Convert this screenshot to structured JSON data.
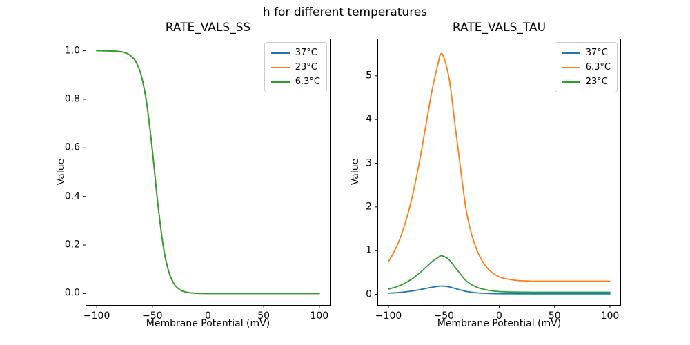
{
  "figure": {
    "suptitle": "h for different temperatures",
    "palette": {
      "blue": "#1f77b4",
      "orange": "#ff7f0e",
      "green": "#2ca02c"
    }
  },
  "chart_data": [
    {
      "type": "line",
      "title": "RATE_VALS_SS",
      "xlabel": "Membrane Potential (mV)",
      "ylabel": "Value",
      "xlim": [
        -110,
        110
      ],
      "ylim": [
        -0.05,
        1.05
      ],
      "grid": false,
      "legend_position": "upper right",
      "legend_entries": [
        "37°C",
        "23°C",
        "6.3°C"
      ],
      "overlap_note": "all three temperature curves coincide exactly; green (6.3°C) is drawn on top",
      "xticks": [
        {
          "v": -100,
          "label": "−100"
        },
        {
          "v": -50,
          "label": "−50"
        },
        {
          "v": 0,
          "label": "0"
        },
        {
          "v": 50,
          "label": "50"
        },
        {
          "v": 100,
          "label": "100"
        }
      ],
      "yticks": [
        {
          "v": 0.0,
          "label": "0.0"
        },
        {
          "v": 0.2,
          "label": "0.2"
        },
        {
          "v": 0.4,
          "label": "0.4"
        },
        {
          "v": 0.6,
          "label": "0.6"
        },
        {
          "v": 0.8,
          "label": "0.8"
        },
        {
          "v": 1.0,
          "label": "1.0"
        }
      ],
      "x": [
        -100,
        -95,
        -90,
        -85,
        -80,
        -75,
        -70,
        -65,
        -60,
        -55,
        -50,
        -45,
        -40,
        -35,
        -30,
        -25,
        -20,
        -15,
        -10,
        -5,
        0,
        5,
        10,
        15,
        20,
        25,
        30,
        35,
        40,
        45,
        50,
        55,
        60,
        65,
        70,
        75,
        80,
        85,
        90,
        95,
        100
      ],
      "series": [
        {
          "name": "37°C",
          "color": "#1f77b4",
          "values": [
            1.0,
            0.9998,
            0.9995,
            0.9988,
            0.997,
            0.9927,
            0.9819,
            0.9565,
            0.8986,
            0.7812,
            0.5899,
            0.3669,
            0.1893,
            0.086,
            0.0365,
            0.015,
            0.0061,
            0.0025,
            0.001,
            0.0004,
            0.0002,
            0.0001,
            0.0,
            0.0,
            0.0,
            0.0,
            0.0,
            0.0,
            0.0,
            0.0,
            0.0,
            0.0,
            0.0,
            0.0,
            0.0,
            0.0,
            0.0,
            0.0,
            0.0,
            0.0,
            0.0
          ]
        },
        {
          "name": "23°C",
          "color": "#ff7f0e",
          "values": [
            1.0,
            0.9998,
            0.9995,
            0.9988,
            0.997,
            0.9927,
            0.9819,
            0.9565,
            0.8986,
            0.7812,
            0.5899,
            0.3669,
            0.1893,
            0.086,
            0.0365,
            0.015,
            0.0061,
            0.0025,
            0.001,
            0.0004,
            0.0002,
            0.0001,
            0.0,
            0.0,
            0.0,
            0.0,
            0.0,
            0.0,
            0.0,
            0.0,
            0.0,
            0.0,
            0.0,
            0.0,
            0.0,
            0.0,
            0.0,
            0.0,
            0.0,
            0.0,
            0.0
          ]
        },
        {
          "name": "6.3°C",
          "color": "#2ca02c",
          "values": [
            1.0,
            0.9998,
            0.9995,
            0.9988,
            0.997,
            0.9927,
            0.9819,
            0.9565,
            0.8986,
            0.7812,
            0.5899,
            0.3669,
            0.1893,
            0.086,
            0.0365,
            0.015,
            0.0061,
            0.0025,
            0.001,
            0.0004,
            0.0002,
            0.0001,
            0.0,
            0.0,
            0.0,
            0.0,
            0.0,
            0.0,
            0.0,
            0.0,
            0.0,
            0.0,
            0.0,
            0.0,
            0.0,
            0.0,
            0.0,
            0.0,
            0.0,
            0.0,
            0.0
          ]
        }
      ]
    },
    {
      "type": "line",
      "title": "RATE_VALS_TAU",
      "xlabel": "Membrane Potential (mV)",
      "ylabel": "Value",
      "xlim": [
        -110,
        110
      ],
      "ylim": [
        -0.26,
        5.85
      ],
      "grid": false,
      "legend_position": "upper right",
      "legend_entries": [
        "37°C",
        "6.3°C",
        "23°C"
      ],
      "xticks": [
        {
          "v": -100,
          "label": "−100"
        },
        {
          "v": -50,
          "label": "−50"
        },
        {
          "v": 0,
          "label": "0"
        },
        {
          "v": 50,
          "label": "50"
        },
        {
          "v": 100,
          "label": "100"
        }
      ],
      "yticks": [
        {
          "v": 0,
          "label": "0"
        },
        {
          "v": 1,
          "label": "1"
        },
        {
          "v": 2,
          "label": "2"
        },
        {
          "v": 3,
          "label": "3"
        },
        {
          "v": 4,
          "label": "4"
        },
        {
          "v": 5,
          "label": "5"
        }
      ],
      "x": [
        -100,
        -95,
        -90,
        -85,
        -80,
        -75,
        -70,
        -65,
        -60,
        -55,
        -53,
        -50,
        -45,
        -40,
        -35,
        -30,
        -25,
        -20,
        -15,
        -10,
        -5,
        0,
        5,
        10,
        15,
        20,
        30,
        40,
        50,
        60,
        70,
        80,
        90,
        100
      ],
      "series": [
        {
          "name": "37°C",
          "color": "#1f77b4",
          "values": [
            0.026,
            0.033,
            0.043,
            0.056,
            0.072,
            0.091,
            0.114,
            0.14,
            0.164,
            0.183,
            0.19,
            0.187,
            0.169,
            0.134,
            0.1,
            0.067,
            0.048,
            0.034,
            0.026,
            0.02,
            0.016,
            0.014,
            0.012,
            0.012,
            0.011,
            0.011,
            0.01,
            0.01,
            0.01,
            0.01,
            0.01,
            0.01,
            0.01,
            0.01
          ]
        },
        {
          "name": "6.3°C",
          "color": "#ff7f0e",
          "values": [
            0.75,
            0.97,
            1.25,
            1.62,
            2.08,
            2.65,
            3.32,
            4.05,
            4.75,
            5.3,
            5.5,
            5.42,
            4.9,
            3.9,
            2.9,
            1.95,
            1.38,
            1.0,
            0.75,
            0.58,
            0.47,
            0.4,
            0.36,
            0.34,
            0.32,
            0.31,
            0.3,
            0.3,
            0.3,
            0.3,
            0.3,
            0.3,
            0.3,
            0.3
          ]
        },
        {
          "name": "23°C",
          "color": "#2ca02c",
          "values": [
            0.12,
            0.155,
            0.2,
            0.259,
            0.333,
            0.424,
            0.531,
            0.648,
            0.76,
            0.848,
            0.88,
            0.867,
            0.784,
            0.624,
            0.464,
            0.312,
            0.221,
            0.16,
            0.12,
            0.093,
            0.075,
            0.064,
            0.058,
            0.054,
            0.051,
            0.05,
            0.048,
            0.048,
            0.048,
            0.048,
            0.048,
            0.048,
            0.048,
            0.048
          ]
        }
      ]
    }
  ]
}
